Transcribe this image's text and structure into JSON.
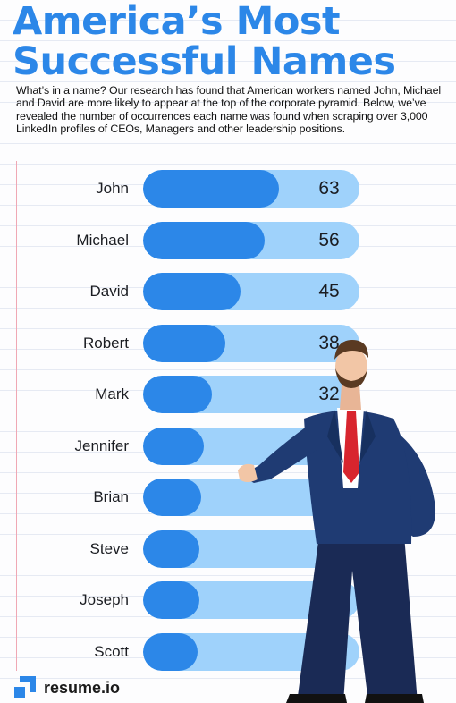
{
  "title": {
    "line1": "America’s Most",
    "line2": "Successful Names"
  },
  "intro": "What’s in a name? Our research has found that American workers named John, Michael and David are more likely to appear at the top of the corporate pyramid. Below, we’ve revealed the number of occurrences each name was found when scraping over 3,000 LinkedIn profiles of CEOs, Managers and other leadership positions.",
  "colors": {
    "accent": "#2c87e8",
    "track": "#9fd2fb",
    "suit": "#1f3b73",
    "tie": "#d8252e"
  },
  "chart_data": {
    "type": "bar",
    "orientation": "horizontal",
    "title": "",
    "categories": [
      "John",
      "Michael",
      "David",
      "Robert",
      "Mark",
      "Jennifer",
      "Brian",
      "Steve",
      "Joseph",
      "Scott"
    ],
    "values": [
      63,
      56,
      45,
      38,
      32,
      28,
      27,
      26,
      26,
      25
    ],
    "xlim": [
      0,
      100
    ]
  },
  "brand": {
    "logo_text": "resume.io",
    "logo_icon": "resume-io-logo-icon"
  },
  "illustration": "businessman-icon"
}
